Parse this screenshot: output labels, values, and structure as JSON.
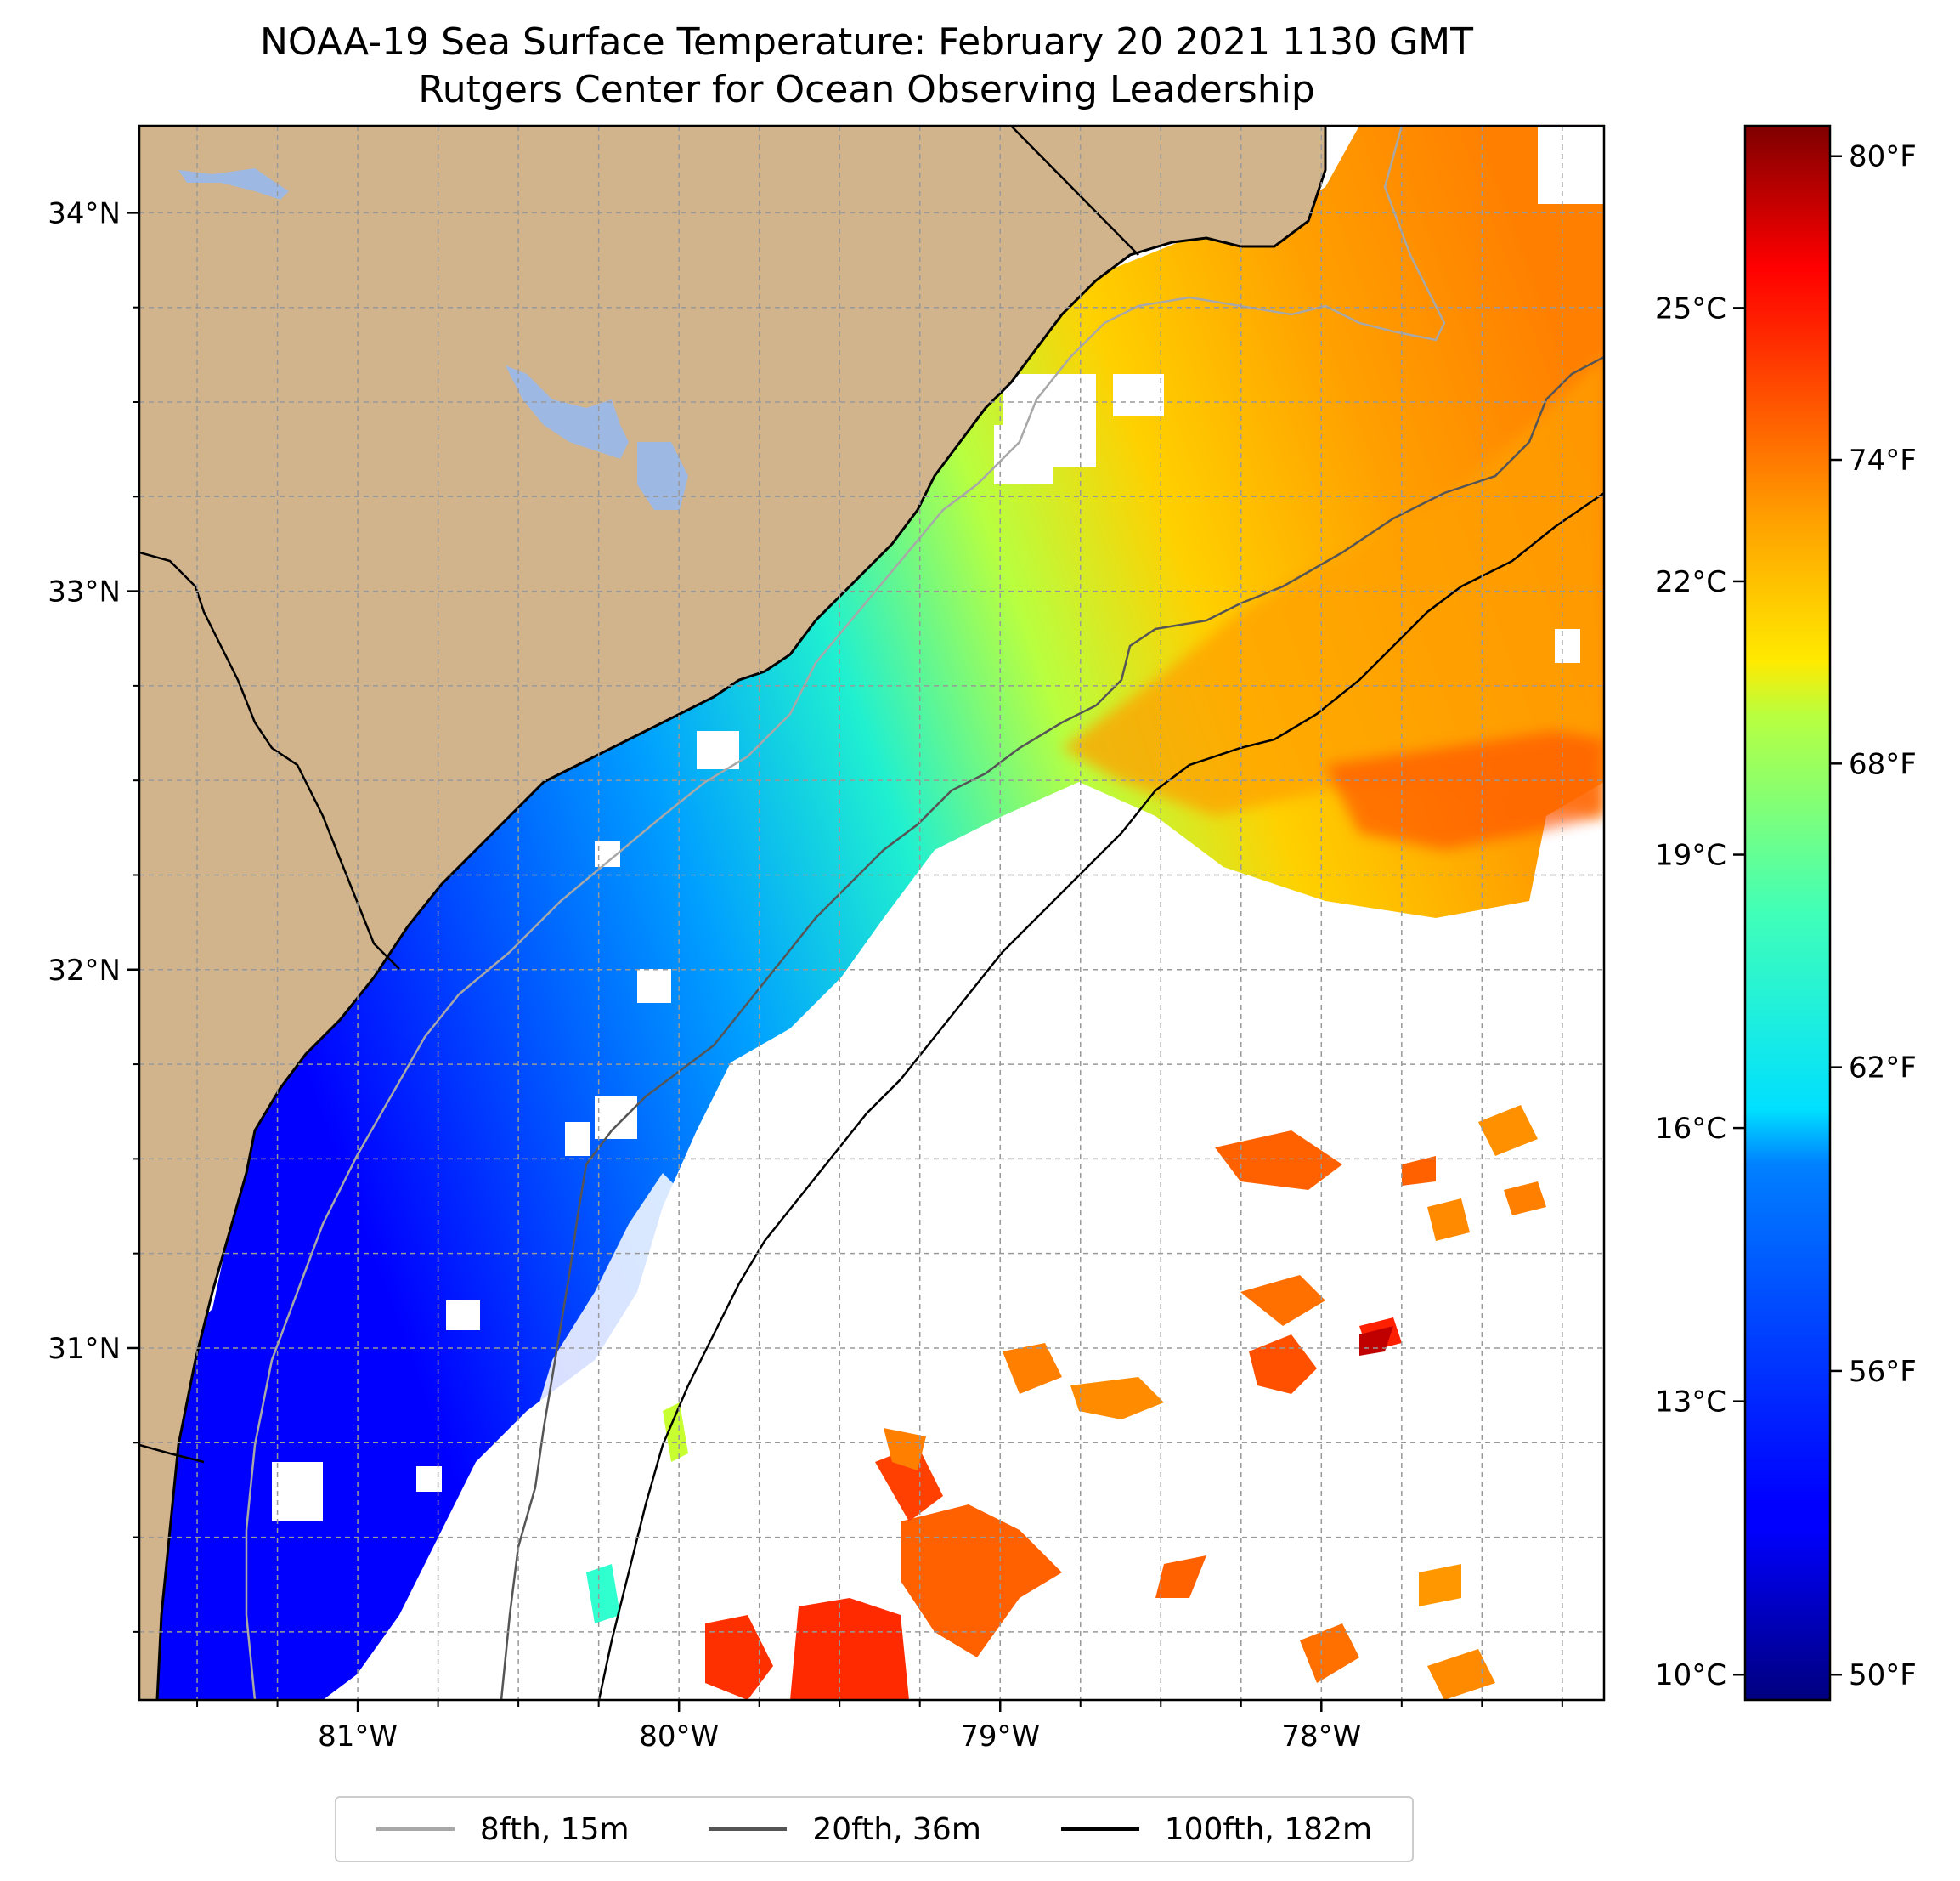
{
  "title": "NOAA-19 Sea Surface Temperature: February 20 2021 1130 GMT",
  "subtitle": "Rutgers Center for Ocean Observing Leadership",
  "colors": {
    "land": "#d2b48c",
    "lake": "#9db9e3",
    "coast": "#000000",
    "isobath_15m": "#a8a8a8",
    "isobath_36m": "#555555",
    "isobath_182m": "#000000",
    "grid": "#999999"
  },
  "map": {
    "lon_range": [
      -81.68,
      -77.12
    ],
    "lat_range": [
      30.07,
      34.23
    ],
    "lon_ticks": [
      {
        "value": -81,
        "label": "81°W"
      },
      {
        "value": -80,
        "label": "80°W"
      },
      {
        "value": -79,
        "label": "79°W"
      },
      {
        "value": -78,
        "label": "78°W"
      }
    ],
    "lat_ticks": [
      {
        "value": 31,
        "label": "31°N"
      },
      {
        "value": 32,
        "label": "32°N"
      },
      {
        "value": 33,
        "label": "33°N"
      },
      {
        "value": 34,
        "label": "34°N"
      }
    ]
  },
  "colorbar": {
    "colormap": "jet",
    "celsius_ticks": [
      {
        "value": 10,
        "label": "10°C"
      },
      {
        "value": 13,
        "label": "13°C"
      },
      {
        "value": 16,
        "label": "16°C"
      },
      {
        "value": 19,
        "label": "19°C"
      },
      {
        "value": 22,
        "label": "22°C"
      },
      {
        "value": 25,
        "label": "25°C"
      }
    ],
    "fahrenheit_ticks": [
      {
        "value": 50,
        "label": "50°F"
      },
      {
        "value": 56,
        "label": "56°F"
      },
      {
        "value": 62,
        "label": "62°F"
      },
      {
        "value": 68,
        "label": "68°F"
      },
      {
        "value": 74,
        "label": "74°F"
      },
      {
        "value": 80,
        "label": "80°F"
      }
    ],
    "f_range": [
      49.5,
      80.6
    ]
  },
  "legend": {
    "items": [
      {
        "label": "8fth, 15m",
        "color": "#a8a8a8"
      },
      {
        "label": "20fth, 36m",
        "color": "#555555"
      },
      {
        "label": "100fth, 182m",
        "color": "#000000"
      }
    ]
  }
}
